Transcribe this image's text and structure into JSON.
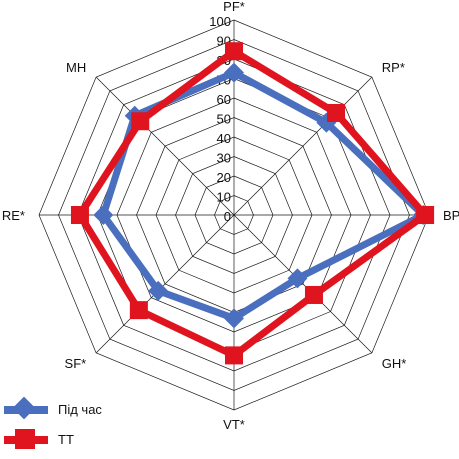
{
  "chart_data": {
    "type": "radar",
    "title": "",
    "axes": [
      "PF*",
      "RP*",
      "BP",
      "GH*",
      "VT*",
      "SF*",
      "RE*",
      "MH"
    ],
    "rmin": 0,
    "rmax": 100,
    "ticks": [
      0,
      10,
      20,
      30,
      40,
      50,
      60,
      70,
      80,
      90,
      100
    ],
    "grid": true,
    "legend_position": "bottom-left",
    "series": [
      {
        "name": "Під час",
        "color": "#4a6fbf",
        "marker": "diamond",
        "values": [
          73,
          67,
          97,
          46,
          53,
          55,
          67,
          72
        ]
      },
      {
        "name": "ТТ",
        "color": "#e0141e",
        "marker": "square",
        "values": [
          84,
          74,
          98,
          58,
          72,
          69,
          79,
          68
        ]
      }
    ]
  }
}
